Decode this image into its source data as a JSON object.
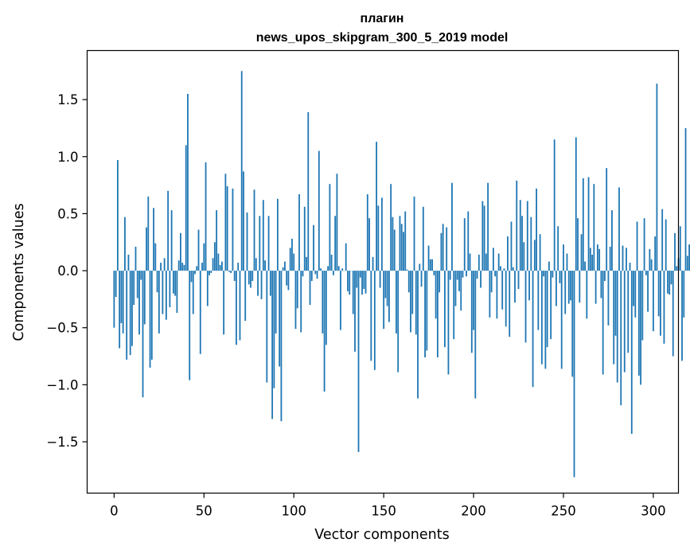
{
  "chart_data": {
    "type": "bar",
    "title_line1": "плагин",
    "title_line2": "news_upos_skipgram_300_5_2019 model",
    "xlabel": "Vector components",
    "ylabel": "Components values",
    "xlim": [
      -15,
      314
    ],
    "ylim": [
      -1.95,
      1.93
    ],
    "x_ticks": [
      0,
      50,
      100,
      150,
      200,
      250,
      300
    ],
    "x_tick_labels": [
      "0",
      "50",
      "100",
      "150",
      "200",
      "250",
      "300"
    ],
    "y_ticks": [
      1.5,
      1.0,
      0.5,
      0.0,
      -0.5,
      -1.0,
      -1.5
    ],
    "y_tick_labels": [
      "1.5",
      "1.0",
      "0.5",
      "0.0",
      "−0.5",
      "−1.0",
      "−1.5"
    ],
    "bar_color": "#1f77b4",
    "values": [
      -0.5,
      -0.23,
      0.97,
      -0.68,
      -0.46,
      -0.55,
      0.47,
      -0.78,
      0.14,
      -0.74,
      -0.66,
      -0.3,
      0.21,
      -0.24,
      -0.56,
      -0.08,
      -1.11,
      -0.47,
      0.38,
      0.65,
      -0.85,
      -0.78,
      0.55,
      0.24,
      -0.19,
      -0.55,
      0.07,
      -0.38,
      0.11,
      -0.43,
      0.7,
      -0.32,
      0.53,
      -0.2,
      -0.22,
      -0.37,
      0.09,
      0.33,
      0.07,
      0.05,
      1.1,
      1.55,
      -0.96,
      -0.1,
      -0.38,
      -0.03,
      0.04,
      0.36,
      -0.73,
      0.07,
      0.24,
      0.95,
      -0.31,
      -0.04,
      -0.02,
      0.11,
      0.25,
      0.53,
      0.15,
      0.05,
      0.08,
      -0.56,
      0.85,
      0.74,
      -0.01,
      -0.02,
      0.72,
      -0.09,
      -0.65,
      0.07,
      -0.61,
      1.75,
      0.87,
      -0.44,
      0.51,
      -0.12,
      -0.15,
      -0.09,
      0.71,
      0.11,
      -0.22,
      0.48,
      -0.25,
      0.62,
      0.09,
      -0.98,
      0.48,
      -0.22,
      -1.3,
      -1.03,
      -0.55,
      0.63,
      -0.84,
      -1.32,
      0.03,
      0.08,
      -0.13,
      -0.17,
      0.2,
      0.28,
      0.15,
      -0.51,
      -0.33,
      0.67,
      -0.54,
      -0.05,
      0.56,
      0.12,
      1.39,
      -0.3,
      -0.09,
      0.4,
      -0.03,
      -0.07,
      1.05,
      0.02,
      -0.55,
      -1.06,
      -0.65,
      0.04,
      0.76,
      0.14,
      -0.04,
      0.48,
      0.85,
      0.04,
      -0.52,
      0.02,
      0.0,
      0.24,
      -0.18,
      -0.21,
      0.0,
      -0.38,
      -0.71,
      -0.15,
      -1.59,
      -0.06,
      -0.21,
      -0.16,
      -0.2,
      0.67,
      0.46,
      -0.79,
      0.12,
      -0.87,
      1.13,
      0.57,
      -0.15,
      0.64,
      -0.51,
      -0.24,
      -0.31,
      -0.45,
      0.76,
      0.47,
      0.36,
      -0.55,
      -0.89,
      0.48,
      0.41,
      0.34,
      0.52,
      0.01,
      -0.19,
      -0.54,
      -0.38,
      0.65,
      -0.56,
      -1.12,
      0.06,
      -0.14,
      0.56,
      -0.76,
      -0.7,
      0.22,
      0.1,
      0.1,
      -0.04,
      -0.42,
      -0.76,
      -0.19,
      0.33,
      0.41,
      -0.67,
      0.38,
      -0.91,
      -0.08,
      0.77,
      -0.6,
      -0.31,
      -0.08,
      -0.18,
      -0.35,
      -0.06,
      0.46,
      -0.05,
      0.52,
      0.15,
      -0.72,
      -0.52,
      -1.12,
      -0.07,
      0.14,
      -0.15,
      0.61,
      0.57,
      0.15,
      0.77,
      -0.41,
      -0.19,
      0.2,
      -0.05,
      -0.42,
      0.15,
      0.04,
      -0.34,
      0.02,
      -0.49,
      0.3,
      -0.58,
      0.43,
      0.03,
      -0.28,
      0.79,
      -0.16,
      0.62,
      0.48,
      0.25,
      -0.63,
      0.61,
      -0.26,
      0.47,
      -1.02,
      0.27,
      0.72,
      -0.52,
      0.32,
      -0.82,
      -0.05,
      -0.86,
      -0.67,
      0.08,
      -0.6,
      -0.06,
      1.15,
      -0.31,
      0.39,
      -0.11,
      -0.86,
      0.23,
      -0.38,
      0.15,
      -0.29,
      -0.26,
      -0.93,
      -1.81,
      1.17,
      0.46,
      -0.28,
      0.32,
      0.81,
      0.08,
      -0.42,
      0.82,
      0.2,
      0.14,
      0.76,
      -0.29,
      0.23,
      0.19,
      -0.24,
      -0.91,
      -0.09,
      0.9,
      -0.48,
      0.21,
      0.53,
      -0.82,
      -0.57,
      -0.98,
      0.73,
      -1.18,
      0.22,
      -0.89,
      0.2,
      -0.72,
      0.07,
      -1.43,
      -0.31,
      -0.41,
      0.43,
      -0.92,
      -1.0,
      -0.61,
      0.46,
      -0.04,
      -0.36,
      0.19,
      0.1,
      -0.53,
      0.3,
      1.64,
      -0.4,
      -0.57,
      0.54,
      -0.64,
      0.45,
      -0.2,
      -0.21,
      -0.12,
      -0.75,
      0.33,
      0.04,
      0.11,
      0.39,
      -0.79,
      -0.41,
      1.25,
      0.13,
      0.23,
      0.78
    ]
  }
}
